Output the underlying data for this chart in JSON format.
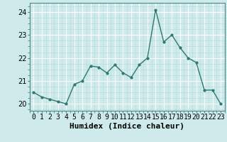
{
  "x": [
    0,
    1,
    2,
    3,
    4,
    5,
    6,
    7,
    8,
    9,
    10,
    11,
    12,
    13,
    14,
    15,
    16,
    17,
    18,
    19,
    20,
    21,
    22,
    23
  ],
  "y": [
    20.5,
    20.3,
    20.2,
    20.1,
    20.0,
    20.85,
    21.0,
    21.65,
    21.6,
    21.35,
    21.7,
    21.35,
    21.15,
    21.7,
    22.0,
    24.1,
    22.7,
    23.0,
    22.45,
    22.0,
    21.8,
    20.6,
    20.6,
    20.0
  ],
  "line_color": "#2d7a6e",
  "marker": "o",
  "marker_size": 2,
  "line_width": 1.0,
  "xlabel": "Humidex (Indice chaleur)",
  "xlabel_fontsize": 8,
  "xlim": [
    -0.5,
    23.5
  ],
  "ylim": [
    19.7,
    24.4
  ],
  "yticks": [
    20,
    21,
    22,
    23,
    24
  ],
  "xtick_labels": [
    "0",
    "1",
    "2",
    "3",
    "4",
    "5",
    "6",
    "7",
    "8",
    "9",
    "10",
    "11",
    "12",
    "13",
    "14",
    "15",
    "16",
    "17",
    "18",
    "19",
    "20",
    "21",
    "22",
    "23"
  ],
  "background_color": "#ceeaea",
  "grid_color_major": "#ffffff",
  "grid_color_minor": "#b8dcdc",
  "tick_fontsize": 7,
  "spine_color": "#4a8888"
}
